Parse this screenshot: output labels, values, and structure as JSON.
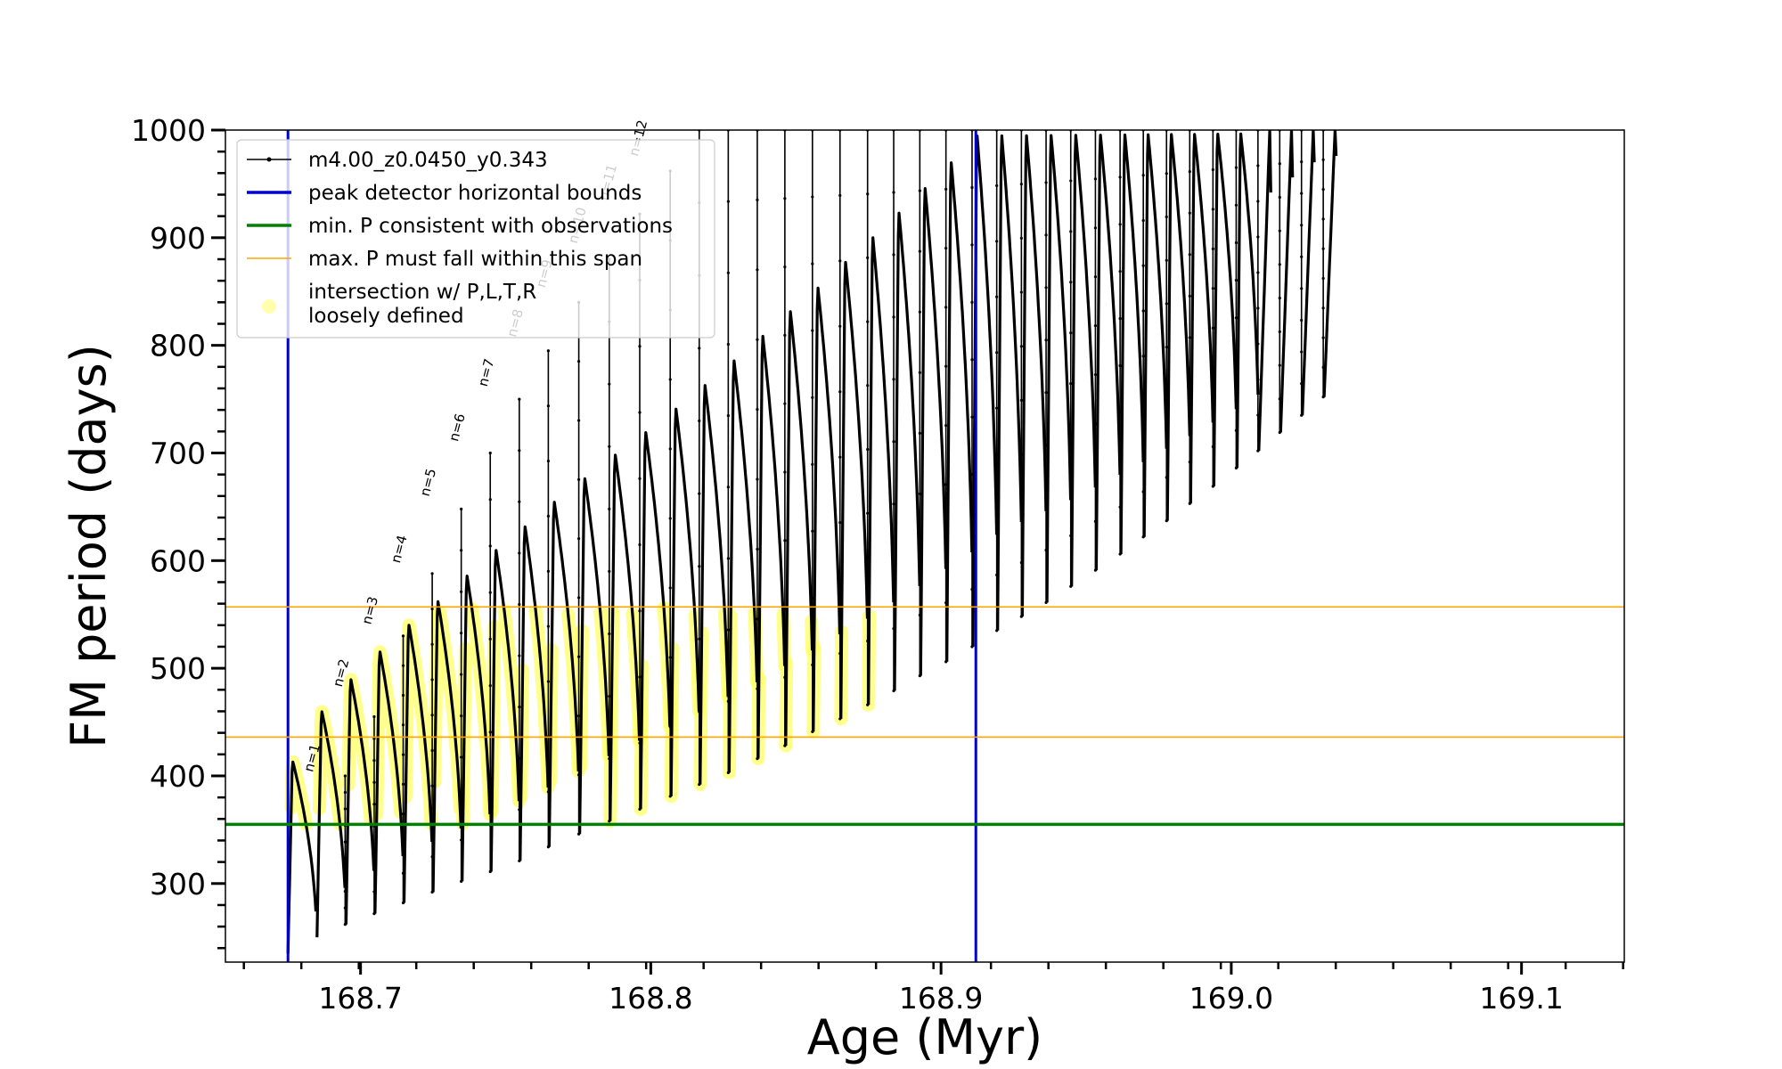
{
  "chart_data": {
    "type": "line",
    "title": "",
    "xlabel": "Age (Myr)",
    "ylabel": "FM period (days)",
    "xlim": [
      168.64,
      169.145
    ],
    "ylim": [
      227,
      1000
    ],
    "x_ticks": [
      168.7,
      168.8,
      168.9,
      169.0,
      169.1
    ],
    "x_tick_labels": [
      "168.7",
      "168.8",
      "168.9",
      "169.0",
      "169.1"
    ],
    "y_ticks": [
      300,
      400,
      500,
      600,
      700,
      800,
      900,
      1000
    ],
    "y_tick_labels": [
      "300",
      "400",
      "500",
      "600",
      "700",
      "800",
      "900",
      "1000"
    ],
    "grid": false,
    "legend_placement": "top-left",
    "legend": [
      {
        "label": "m4.00_z0.0450_y0.343",
        "color": "#000000",
        "style": "line-marker"
      },
      {
        "label": "peak detector horizontal bounds",
        "color": "#0000cc",
        "style": "line"
      },
      {
        "label": "min. P consistent with observations",
        "color": "#008000",
        "style": "line"
      },
      {
        "label": "max. P must fall within this span",
        "color": "#ffa500",
        "style": "line"
      },
      {
        "label": "intersection w/ P,L,T,R\nloosely defined",
        "color": "#ffff99",
        "style": "marker"
      }
    ],
    "reference_lines": {
      "vertical_blue": [
        168.675,
        168.912
      ],
      "horizontal_green": 355,
      "horizontal_orange": [
        436,
        557
      ]
    },
    "pulse_cycles": {
      "x": [
        168.675,
        168.685,
        168.695,
        168.705,
        168.715,
        168.725,
        168.735,
        168.745,
        168.755,
        168.765,
        168.7755,
        168.786,
        168.7965,
        168.807,
        168.817,
        168.827,
        168.837,
        168.8465,
        168.856,
        168.8655,
        168.875,
        168.884,
        168.893,
        168.902,
        168.911,
        168.9195,
        168.928,
        168.9365,
        168.945,
        168.9535,
        168.962,
        168.97,
        168.978,
        168.986,
        168.994,
        169.002,
        169.0095,
        169.017,
        169.0245,
        169.032
      ],
      "min_period": [
        235,
        250,
        262,
        272,
        282,
        292,
        302,
        311,
        321,
        334,
        346,
        358,
        369,
        381,
        392,
        403,
        416,
        428,
        441,
        453,
        466,
        479,
        493,
        506,
        520,
        535,
        548,
        561,
        576,
        591,
        606,
        622,
        637,
        653,
        669,
        686,
        702,
        719,
        735,
        752
      ],
      "peak_period": [
        415,
        462,
        492,
        518,
        543,
        565,
        589,
        613,
        635,
        658,
        680,
        702,
        723,
        745,
        767,
        790,
        813,
        836,
        858,
        882,
        905,
        928,
        951,
        975,
        1000,
        1000,
        1000,
        1000,
        1000,
        1000,
        1000,
        1000,
        1000,
        1000,
        1000,
        1000,
        1000,
        1000,
        1000,
        1000
      ],
      "spike_period": [
        null,
        400,
        455,
        530,
        588,
        648,
        700,
        750,
        795,
        840,
        880,
        922,
        962,
        1000,
        1000,
        1000,
        1000,
        1000,
        1000,
        1000,
        1000,
        1000,
        1000,
        1000,
        1000,
        1000,
        1000,
        1000,
        1000,
        1000,
        1000,
        1000,
        1000,
        1000,
        1000,
        1000,
        1000,
        1000,
        1000,
        1000
      ],
      "end_period": [
        null,
        null,
        null,
        null,
        null,
        null,
        null,
        null,
        null,
        null,
        null,
        null,
        null,
        null,
        null,
        null,
        null,
        null,
        null,
        null,
        null,
        null,
        null,
        null,
        null,
        null,
        null,
        null,
        null,
        null,
        null,
        null,
        null,
        null,
        null,
        null,
        942,
        956,
        970,
        976
      ]
    },
    "annotations": [
      {
        "text": "n=1",
        "x": 168.6835,
        "y": 403
      },
      {
        "text": "n=2",
        "x": 168.6935,
        "y": 482
      },
      {
        "text": "n=3",
        "x": 168.7035,
        "y": 540
      },
      {
        "text": "n=4",
        "x": 168.7135,
        "y": 597
      },
      {
        "text": "n=5",
        "x": 168.7235,
        "y": 659
      },
      {
        "text": "n=6",
        "x": 168.7335,
        "y": 710
      },
      {
        "text": "n=7",
        "x": 168.7435,
        "y": 761
      },
      {
        "text": "n=8",
        "x": 168.7535,
        "y": 807
      },
      {
        "text": "n=9",
        "x": 168.7635,
        "y": 853
      },
      {
        "text": "n=10",
        "x": 168.7745,
        "y": 894
      },
      {
        "text": "n=11",
        "x": 168.785,
        "y": 934
      },
      {
        "text": "n=12",
        "x": 168.7955,
        "y": 975
      }
    ]
  }
}
